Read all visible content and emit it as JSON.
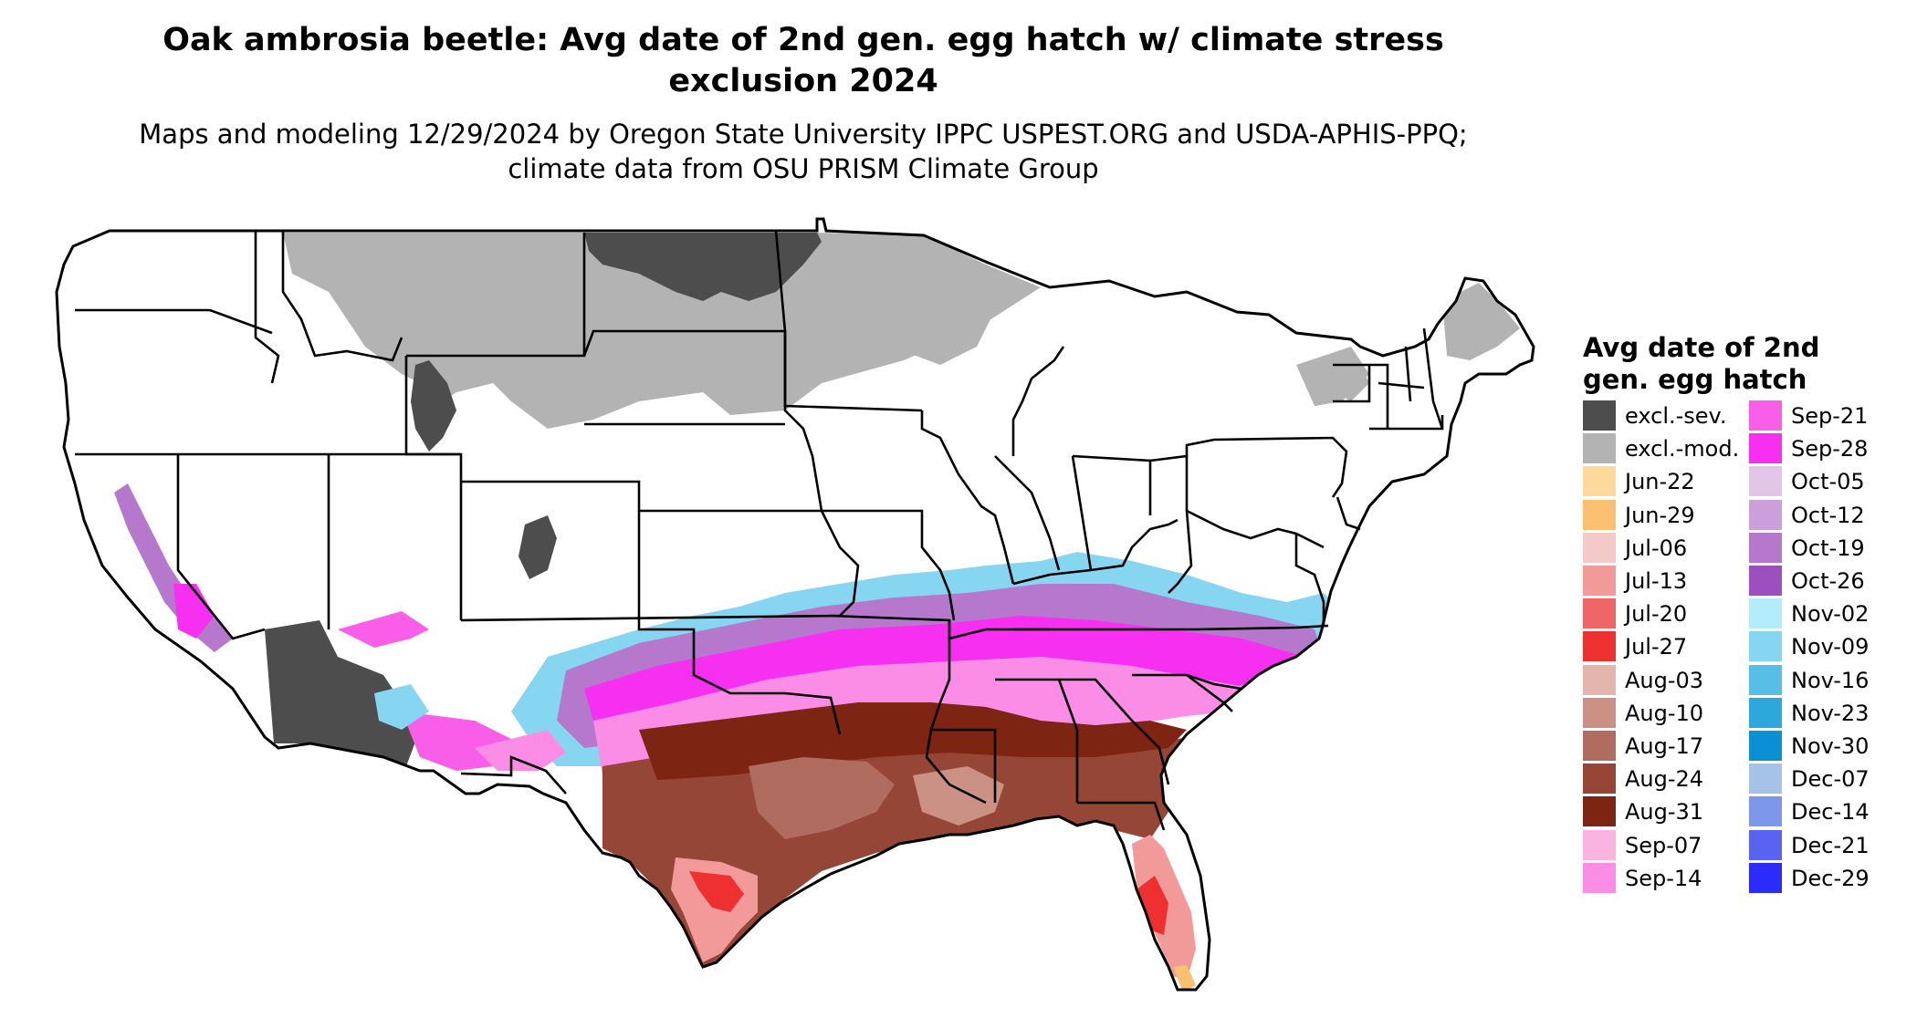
{
  "figure": {
    "title": "Oak ambrosia beetle: Avg date of 2nd gen. egg hatch w/ climate stress exclusion 2024",
    "subtitle": "Maps and modeling 12/29/2024 by Oregon State University IPPC USPEST.ORG and USDA-APHIS-PPQ; climate data from OSU PRISM Climate Group"
  },
  "legend": {
    "title": "Avg date of 2nd gen. egg hatch",
    "items": [
      {
        "label": "excl.-sev.",
        "color": "#4d4d4d"
      },
      {
        "label": "excl.-mod.",
        "color": "#b3b3b3"
      },
      {
        "label": "Jun-22",
        "color": "#fdd99b"
      },
      {
        "label": "Jun-29",
        "color": "#fcc071"
      },
      {
        "label": "Jul-06",
        "color": "#f4c9c9"
      },
      {
        "label": "Jul-13",
        "color": "#f29a9a"
      },
      {
        "label": "Jul-20",
        "color": "#ee6666"
      },
      {
        "label": "Jul-27",
        "color": "#ee3030"
      },
      {
        "label": "Aug-03",
        "color": "#e2b5ad"
      },
      {
        "label": "Aug-10",
        "color": "#cb9185"
      },
      {
        "label": "Aug-17",
        "color": "#b06c5e"
      },
      {
        "label": "Aug-24",
        "color": "#964636"
      },
      {
        "label": "Aug-31",
        "color": "#7d2413"
      },
      {
        "label": "Sep-07",
        "color": "#fbb3e0"
      },
      {
        "label": "Sep-14",
        "color": "#fc8de6"
      },
      {
        "label": "Sep-21",
        "color": "#f95ee9"
      },
      {
        "label": "Sep-28",
        "color": "#f72ff0"
      },
      {
        "label": "Oct-05",
        "color": "#e3c5e9"
      },
      {
        "label": "Oct-12",
        "color": "#cc9fdb"
      },
      {
        "label": "Oct-19",
        "color": "#b578cd"
      },
      {
        "label": "Oct-26",
        "color": "#9c4fbf"
      },
      {
        "label": "Nov-02",
        "color": "#b3ecfb"
      },
      {
        "label": "Nov-09",
        "color": "#86d6f2"
      },
      {
        "label": "Nov-16",
        "color": "#57bfe6"
      },
      {
        "label": "Nov-23",
        "color": "#2ea8dc"
      },
      {
        "label": "Nov-30",
        "color": "#0a90d3"
      },
      {
        "label": "Dec-07",
        "color": "#a6c3e7"
      },
      {
        "label": "Dec-14",
        "color": "#7d97eb"
      },
      {
        "label": "Dec-21",
        "color": "#5a62f2"
      },
      {
        "label": "Dec-29",
        "color": "#2b2bfb"
      }
    ]
  }
}
